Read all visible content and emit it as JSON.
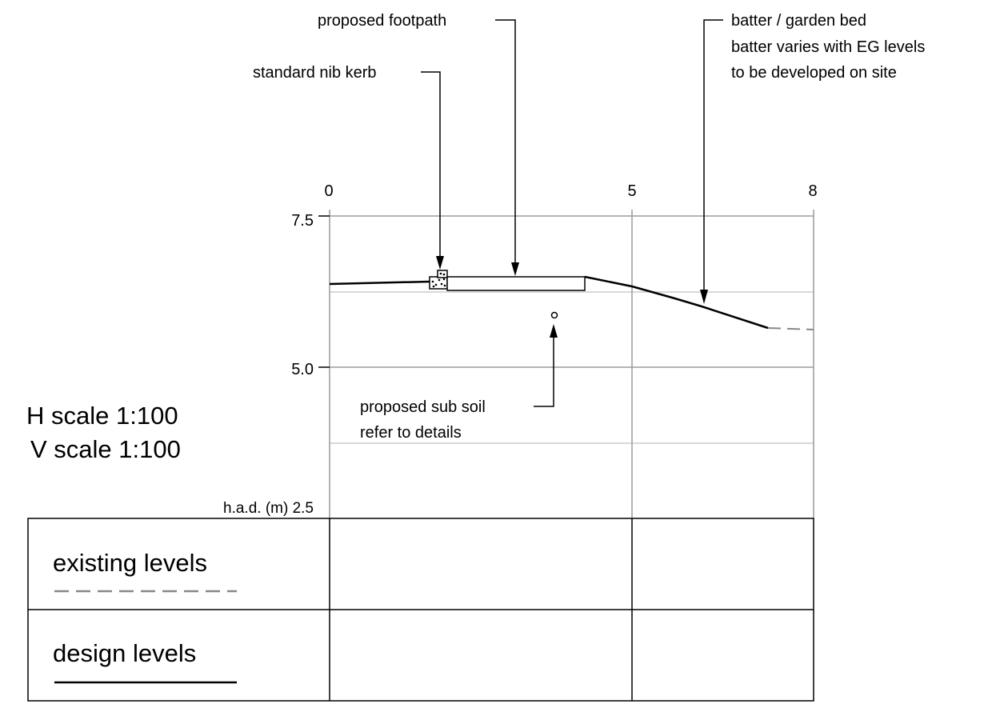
{
  "labels": {
    "proposed_footpath": "proposed footpath",
    "standard_nib_kerb": "standard nib kerb",
    "batter_line1": "batter / garden bed",
    "batter_line2": "batter varies with EG levels",
    "batter_line3": "to be developed on site",
    "sub_soil_line1": "proposed sub soil",
    "sub_soil_line2": "refer to details"
  },
  "axes": {
    "x_ticks": [
      "0",
      "5",
      "8"
    ],
    "y_ticks": [
      "7.5",
      "5.0"
    ],
    "datum_label": "h.a.d. (m) 2.5"
  },
  "scales": {
    "horizontal": "H scale 1:100",
    "vertical": "V scale 1:100"
  },
  "legend": {
    "existing": "existing levels",
    "design": "design levels"
  },
  "colors": {
    "line": "#000000",
    "grid_major": "#9a9a9a",
    "grid_minor": "#cccccc",
    "existing_dash": "#888888"
  }
}
